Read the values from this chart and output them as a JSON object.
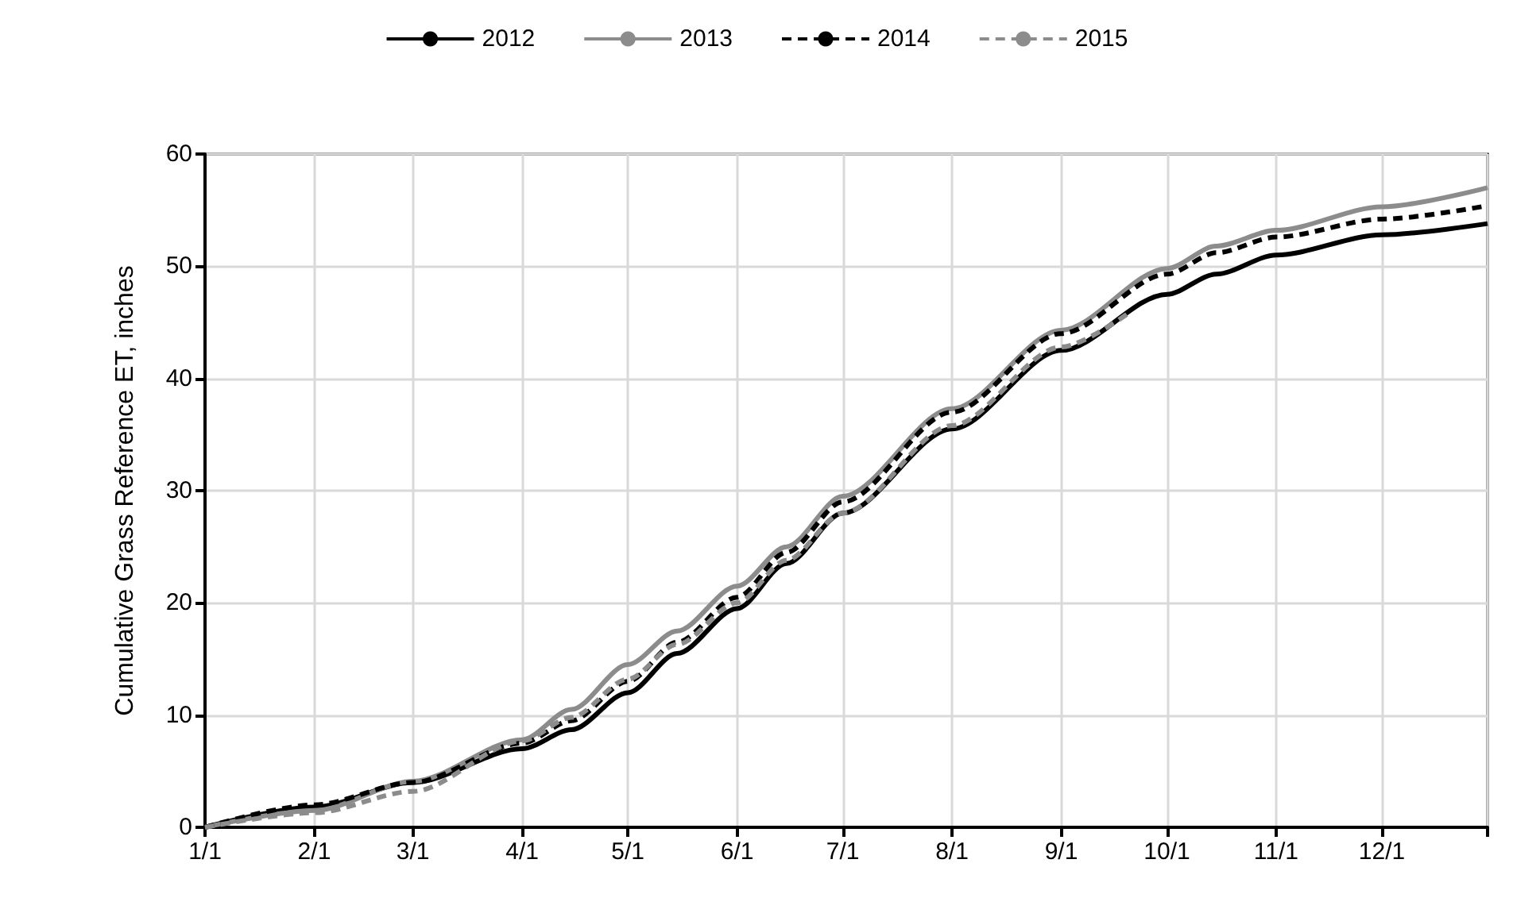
{
  "chart_data": {
    "type": "line",
    "ylabel": "Cumulative Grass Reference ET, inches",
    "ylim": [
      0,
      60
    ],
    "yticks": [
      0,
      10,
      20,
      30,
      40,
      50,
      60
    ],
    "xlim": [
      "--01-01",
      "--12-31"
    ],
    "xticks": [
      {
        "value": "--01-01",
        "label": "1/1"
      },
      {
        "value": "--02-01",
        "label": "2/1"
      },
      {
        "value": "--03-01",
        "label": "3/1"
      },
      {
        "value": "--04-01",
        "label": "4/1"
      },
      {
        "value": "--05-01",
        "label": "5/1"
      },
      {
        "value": "--06-01",
        "label": "6/1"
      },
      {
        "value": "--07-01",
        "label": "7/1"
      },
      {
        "value": "--08-01",
        "label": "8/1"
      },
      {
        "value": "--09-01",
        "label": "9/1"
      },
      {
        "value": "--10-01",
        "label": "10/1"
      },
      {
        "value": "--11-01",
        "label": "11/1"
      },
      {
        "value": "--12-01",
        "label": "12/1"
      },
      {
        "value": "--12-31",
        "label": null
      }
    ],
    "grid": true,
    "legend": "top",
    "marker": "none",
    "x": [
      "--01-01",
      "--02-01",
      "--03-01",
      "--04-01",
      "--04-15",
      "--05-01",
      "--05-15",
      "--06-01",
      "--06-15",
      "--07-01",
      "--08-01",
      "--09-01",
      "--10-01",
      "--10-15",
      "--11-01",
      "--12-01",
      "--12-31"
    ],
    "series": [
      {
        "name": "2012",
        "color": "#000000",
        "line_style": "solid",
        "values": [
          0,
          1.8,
          4,
          7,
          8.7,
          12,
          15.5,
          19.5,
          23.5,
          28,
          35.5,
          42.5,
          47.5,
          49.3,
          51,
          52.8,
          53.8
        ]
      },
      {
        "name": "2013",
        "color": "#8c8c8c",
        "line_style": "solid",
        "values": [
          0,
          1.5,
          4.1,
          7.8,
          10.5,
          14.5,
          17.5,
          21.5,
          25,
          29.5,
          37.3,
          44.3,
          49.8,
          51.8,
          53.2,
          55.3,
          57
        ]
      },
      {
        "name": "2014",
        "color": "#000000",
        "line_style": "dashed",
        "values": [
          0,
          2,
          4,
          7.5,
          9.5,
          13,
          16.5,
          20.5,
          24.5,
          29,
          37,
          44,
          49.3,
          51.2,
          52.6,
          54.2,
          55.4
        ]
      },
      {
        "name": "2015",
        "color": "#8c8c8c",
        "line_style": "dashed",
        "x": [
          "--01-01",
          "--02-01",
          "--03-01",
          "--04-01",
          "--04-15",
          "--05-01",
          "--05-15",
          "--06-01",
          "--06-15",
          "--07-01",
          "--08-01",
          "--09-01",
          "--09-20"
        ],
        "values": [
          0,
          1.3,
          3.2,
          7.7,
          9.8,
          13.2,
          16.3,
          20,
          23.8,
          28,
          35.8,
          42.8,
          45.8
        ]
      }
    ]
  }
}
